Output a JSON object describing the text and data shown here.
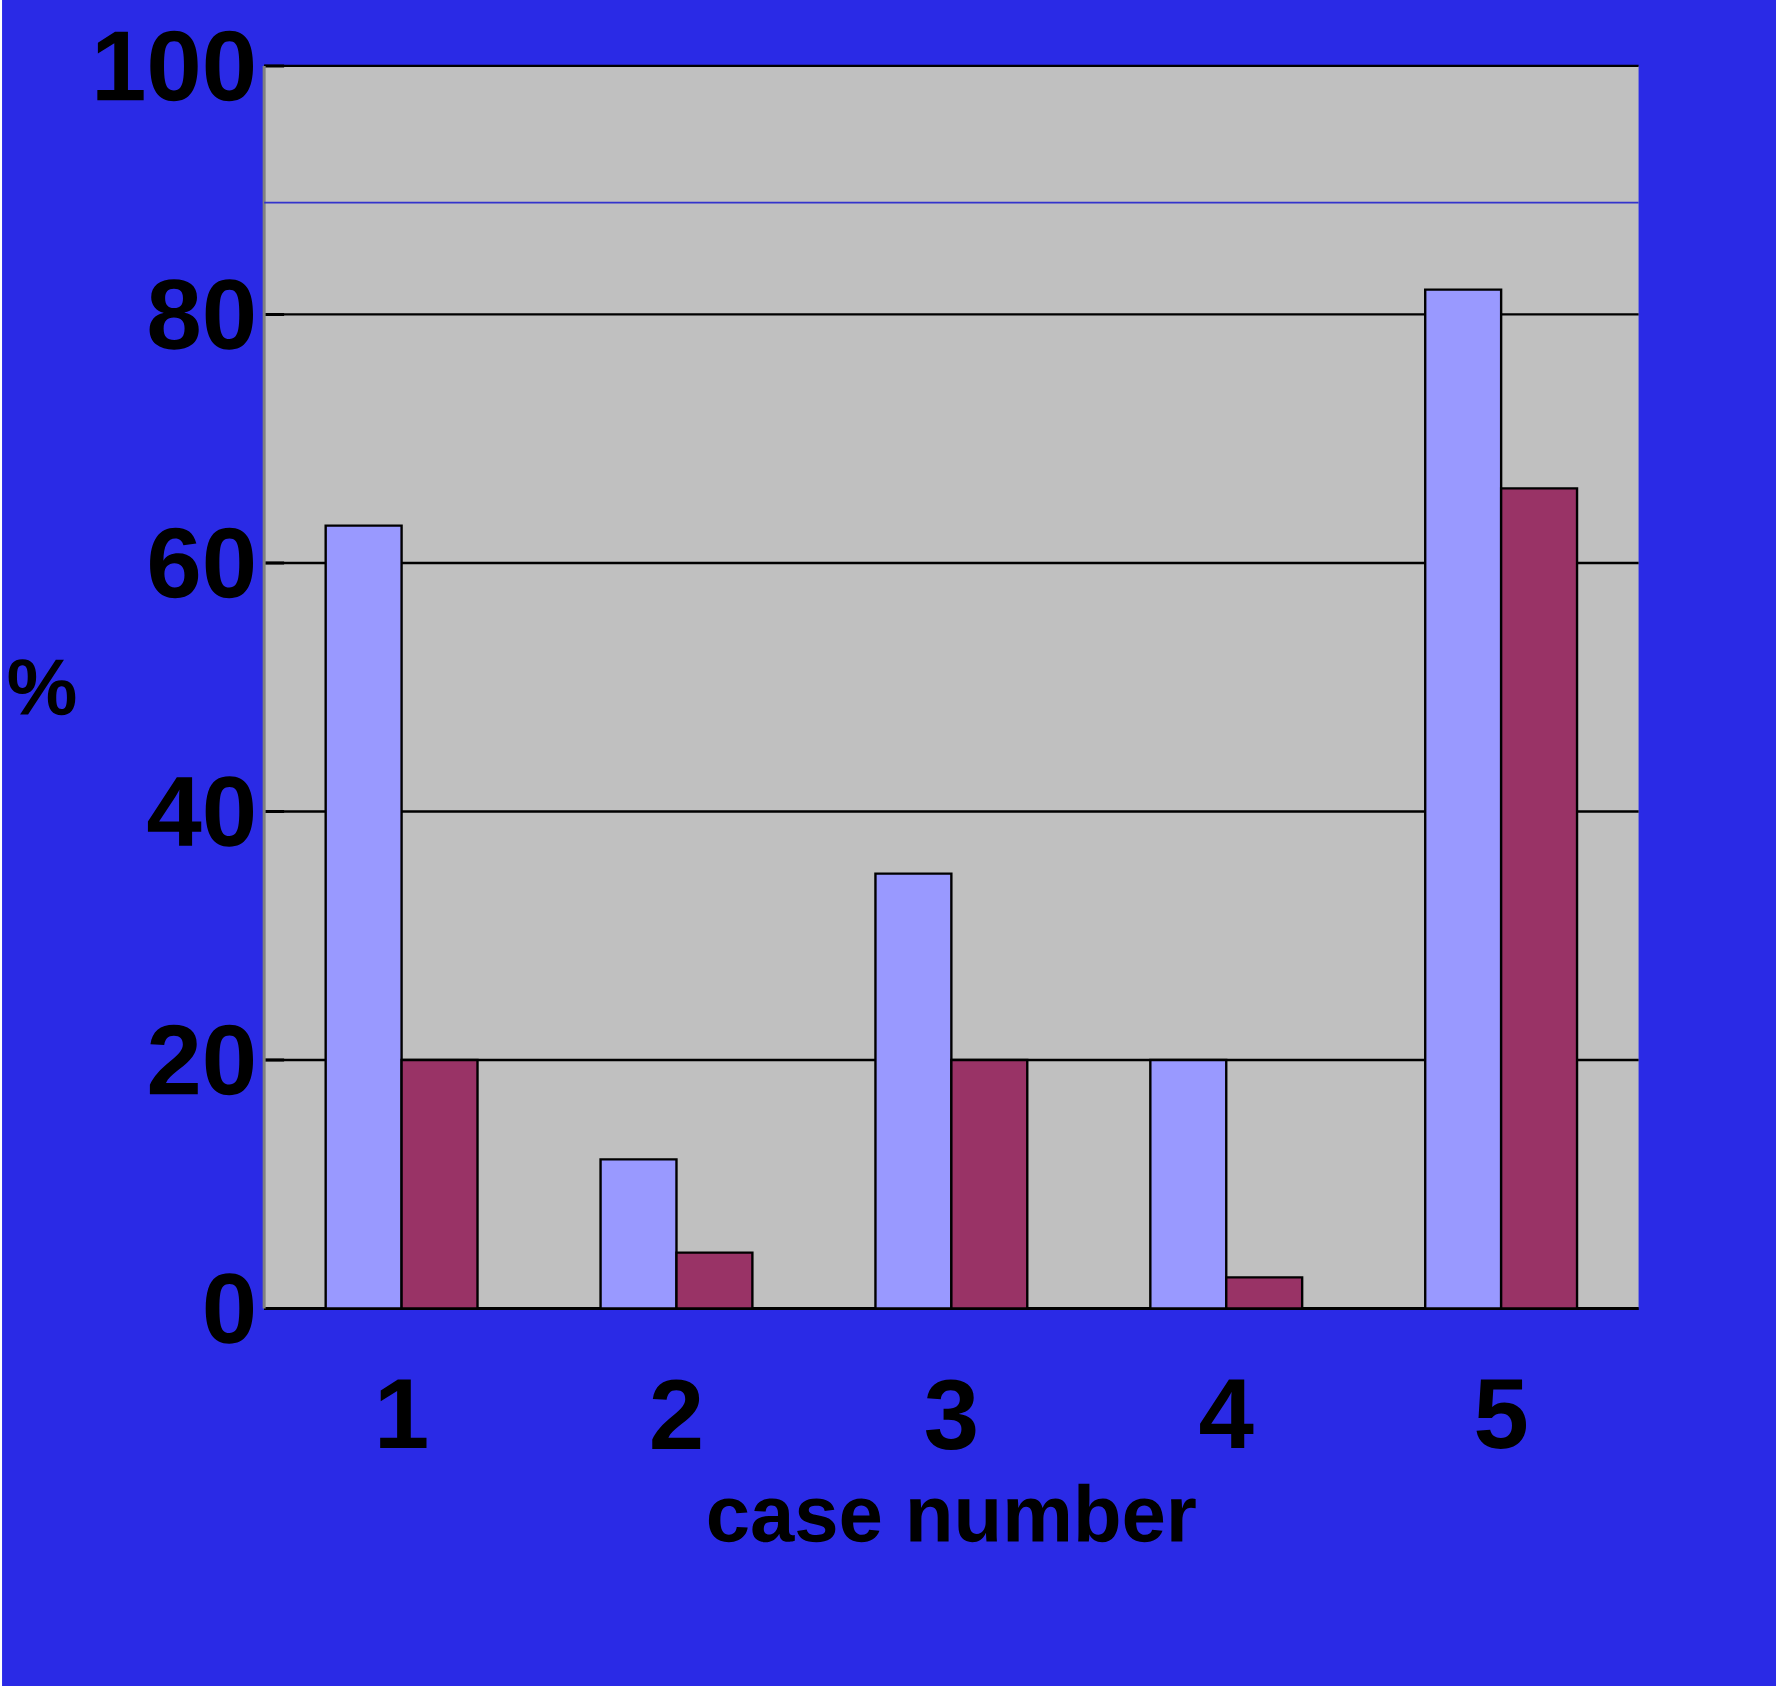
{
  "chart_data": {
    "type": "bar",
    "xlabel": "case number",
    "ylabel": "%",
    "categories": [
      "1",
      "2",
      "3",
      "4",
      "5"
    ],
    "series": [
      {
        "color": "#9999ff",
        "values": [
          63,
          12,
          35,
          20,
          82
        ]
      },
      {
        "color": "#993366",
        "values": [
          20,
          4.5,
          20,
          2.5,
          66
        ]
      }
    ],
    "ylim": [
      0,
      100
    ],
    "yticks": [
      0,
      20,
      40,
      60,
      80,
      100
    ],
    "grid": "y",
    "ref_lines": [
      {
        "axis": "y",
        "value": 89,
        "color": "#3333cc"
      }
    ]
  }
}
